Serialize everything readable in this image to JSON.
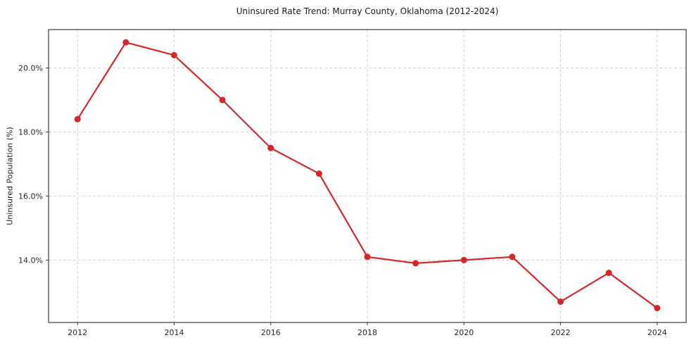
{
  "chart_data": {
    "type": "line",
    "title": "Uninsured Rate Trend: Murray County, Oklahoma (2012-2024)",
    "xlabel": "",
    "ylabel": "Uninsured Population (%)",
    "x": [
      2012,
      2013,
      2014,
      2015,
      2016,
      2017,
      2018,
      2019,
      2020,
      2021,
      2022,
      2023,
      2024
    ],
    "values": [
      18.4,
      20.8,
      20.4,
      19.0,
      17.5,
      16.7,
      14.1,
      13.9,
      14.0,
      14.1,
      12.7,
      13.6,
      12.5
    ],
    "xticks": [
      2012,
      2014,
      2016,
      2018,
      2020,
      2022,
      2024
    ],
    "xtick_labels": [
      "2012",
      "2014",
      "2016",
      "2018",
      "2020",
      "2022",
      "2024"
    ],
    "yticks": [
      14.0,
      16.0,
      18.0,
      20.0
    ],
    "ytick_labels": [
      "14.0%",
      "16.0%",
      "18.0%",
      "20.0%"
    ],
    "xlim": [
      2011.4,
      2024.6
    ],
    "ylim": [
      12.05,
      21.2
    ],
    "grid": true,
    "grid_style": "dashed",
    "legend_position": "none",
    "colors": {
      "line": "#d62728",
      "marker": "#d62728",
      "grid": "#d2d2d2",
      "spine": "#3a3a3a",
      "tick_text": "#262626"
    }
  }
}
